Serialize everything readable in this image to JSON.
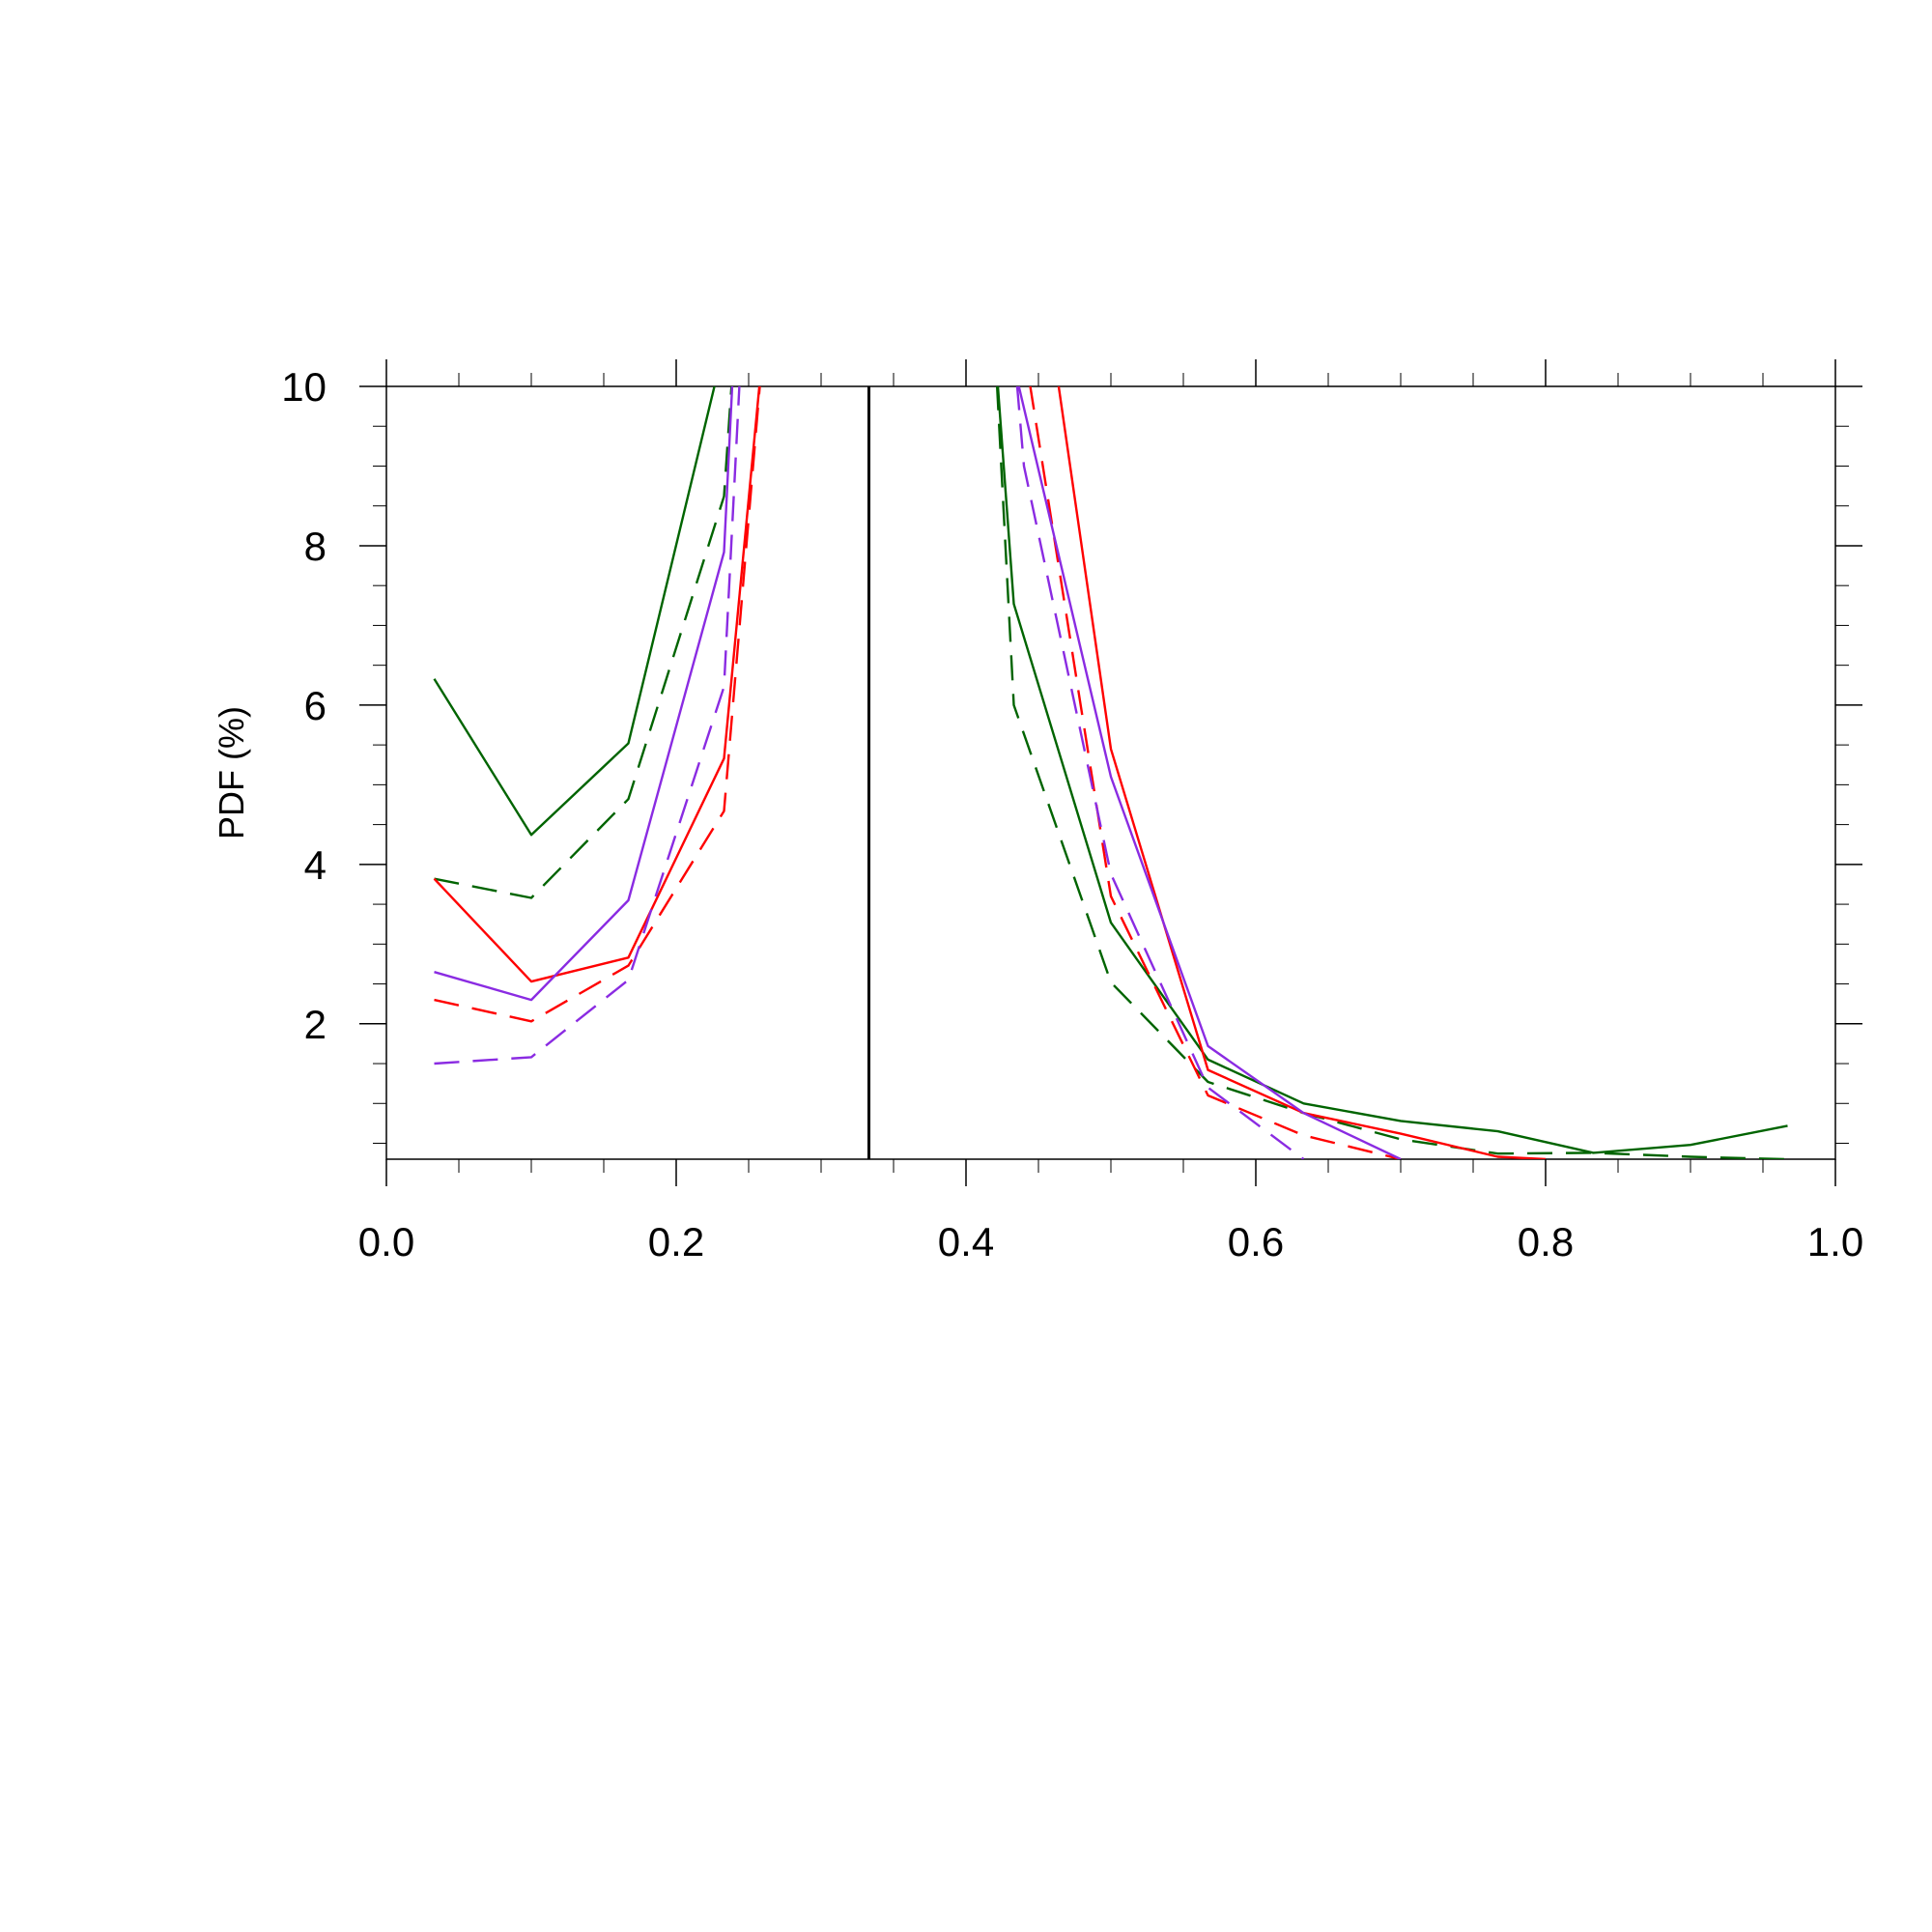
{
  "chart_data": {
    "type": "line",
    "title": "",
    "xlabel": "",
    "ylabel": "PDF (%)",
    "xlim": [
      0.0,
      1.0
    ],
    "ylim": [
      0.3,
      10.0
    ],
    "x_ticks": [
      0.0,
      0.2,
      0.4,
      0.6,
      0.8,
      1.0
    ],
    "x_tick_labels": [
      "0.0",
      "0.2",
      "0.4",
      "0.6",
      "0.8",
      "1.0"
    ],
    "y_ticks": [
      2,
      4,
      6,
      8,
      10
    ],
    "y_tick_labels": [
      "2",
      "4",
      "6",
      "8",
      "10"
    ],
    "vertical_reference_line": 0.333,
    "grid": false,
    "legend": "none",
    "series": [
      {
        "color": "#006400",
        "dash": "solid",
        "points": [
          [
            0.033,
            6.33
          ],
          [
            0.1,
            4.37
          ],
          [
            0.167,
            5.52
          ],
          [
            0.233,
            10.5
          ],
          null,
          [
            0.42,
            10.5
          ],
          [
            0.433,
            7.27
          ],
          [
            0.5,
            3.27
          ],
          [
            0.567,
            1.55
          ],
          [
            0.633,
            1.0
          ],
          [
            0.7,
            0.78
          ],
          [
            0.767,
            0.65
          ],
          [
            0.833,
            0.38
          ],
          [
            0.9,
            0.48
          ],
          [
            0.967,
            0.72
          ]
        ]
      },
      {
        "color": "#006400",
        "dash": "dashed",
        "points": [
          [
            0.033,
            3.82
          ],
          [
            0.1,
            3.58
          ],
          [
            0.167,
            4.82
          ],
          [
            0.233,
            8.62
          ],
          [
            0.24,
            10.5
          ],
          null,
          [
            0.42,
            10.5
          ],
          [
            0.433,
            6.0
          ],
          [
            0.5,
            2.52
          ],
          [
            0.567,
            1.27
          ],
          [
            0.633,
            0.88
          ],
          [
            0.7,
            0.55
          ],
          [
            0.767,
            0.37
          ],
          [
            0.833,
            0.38
          ],
          [
            0.9,
            0.33
          ],
          [
            0.967,
            0.3
          ]
        ]
      },
      {
        "color": "#ff0000",
        "dash": "solid",
        "points": [
          [
            0.033,
            3.82
          ],
          [
            0.1,
            2.53
          ],
          [
            0.167,
            2.83
          ],
          [
            0.233,
            5.33
          ],
          [
            0.26,
            10.5
          ],
          null,
          [
            0.46,
            10.5
          ],
          [
            0.5,
            5.45
          ],
          [
            0.567,
            1.42
          ],
          [
            0.633,
            0.88
          ],
          [
            0.7,
            0.62
          ],
          [
            0.767,
            0.33
          ],
          [
            0.8,
            0.3
          ]
        ]
      },
      {
        "color": "#ff0000",
        "dash": "dashed",
        "points": [
          [
            0.033,
            2.3
          ],
          [
            0.1,
            2.03
          ],
          [
            0.167,
            2.73
          ],
          [
            0.233,
            4.67
          ],
          [
            0.26,
            10.5
          ],
          null,
          [
            0.44,
            10.5
          ],
          [
            0.5,
            3.6
          ],
          [
            0.567,
            1.1
          ],
          [
            0.633,
            0.6
          ],
          [
            0.7,
            0.3
          ]
        ]
      },
      {
        "color": "#8a2be2",
        "dash": "solid",
        "points": [
          [
            0.033,
            2.65
          ],
          [
            0.1,
            2.3
          ],
          [
            0.167,
            3.55
          ],
          [
            0.233,
            7.92
          ],
          [
            0.24,
            10.5
          ],
          null,
          [
            0.43,
            10.5
          ],
          [
            0.5,
            5.1
          ],
          [
            0.567,
            1.72
          ],
          [
            0.633,
            0.88
          ],
          [
            0.7,
            0.3
          ]
        ]
      },
      {
        "color": "#8a2be2",
        "dash": "dashed",
        "points": [
          [
            0.033,
            1.5
          ],
          [
            0.1,
            1.58
          ],
          [
            0.167,
            2.55
          ],
          [
            0.233,
            6.23
          ],
          [
            0.245,
            10.5
          ],
          null,
          [
            0.433,
            10.5
          ],
          [
            0.44,
            9.0
          ],
          [
            0.5,
            3.88
          ],
          [
            0.567,
            1.2
          ],
          [
            0.633,
            0.3
          ]
        ]
      }
    ]
  }
}
